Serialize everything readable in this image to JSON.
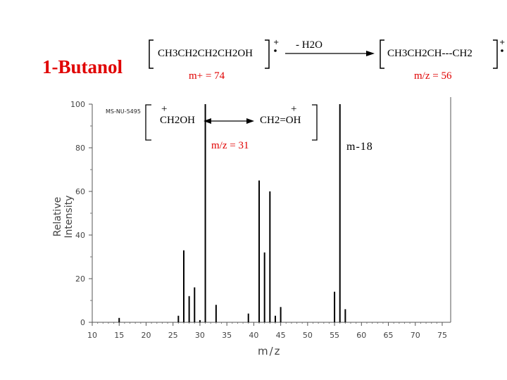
{
  "slide": {
    "title": "1-Butanol",
    "reaction": {
      "reactant_formula": "CH3CH2CH2CH2OH",
      "reactant_mass_label": "m+ = 74",
      "loss_label": "- H2O",
      "product_formula": "CH3CH2CH---CH2",
      "product_mass_label": "m/z = 56"
    },
    "fragment": {
      "left_formula": "CH2OH",
      "right_formula": "CH2=OH",
      "mass_label": "m/z = 31",
      "charge_symbol": "+"
    },
    "annotation_m18": "m-18",
    "spectrum_id": "MS-NU-5495",
    "colors": {
      "accent": "#e00000",
      "ink": "#000000",
      "axis": "#555555"
    }
  },
  "chart_data": {
    "type": "bar",
    "title": "",
    "xlabel": "m/z",
    "ylabel": "Relative Intensity",
    "xlim": [
      10,
      76
    ],
    "ylim": [
      0,
      100
    ],
    "x_ticks": [
      "10",
      "15",
      "20",
      "25",
      "30",
      "35",
      "40",
      "45",
      "50",
      "55",
      "60",
      "65",
      "70",
      "75"
    ],
    "y_ticks": [
      "0",
      "20",
      "40",
      "60",
      "80",
      "100"
    ],
    "grid": false,
    "peaks": [
      {
        "x": 15,
        "y": 2
      },
      {
        "x": 26,
        "y": 3
      },
      {
        "x": 27,
        "y": 33
      },
      {
        "x": 28,
        "y": 12
      },
      {
        "x": 29,
        "y": 16
      },
      {
        "x": 30,
        "y": 1
      },
      {
        "x": 31,
        "y": 100
      },
      {
        "x": 33,
        "y": 8
      },
      {
        "x": 39,
        "y": 4
      },
      {
        "x": 41,
        "y": 65
      },
      {
        "x": 42,
        "y": 32
      },
      {
        "x": 43,
        "y": 60
      },
      {
        "x": 44,
        "y": 3
      },
      {
        "x": 45,
        "y": 7
      },
      {
        "x": 55,
        "y": 14
      },
      {
        "x": 56,
        "y": 100
      },
      {
        "x": 57,
        "y": 6
      }
    ]
  }
}
